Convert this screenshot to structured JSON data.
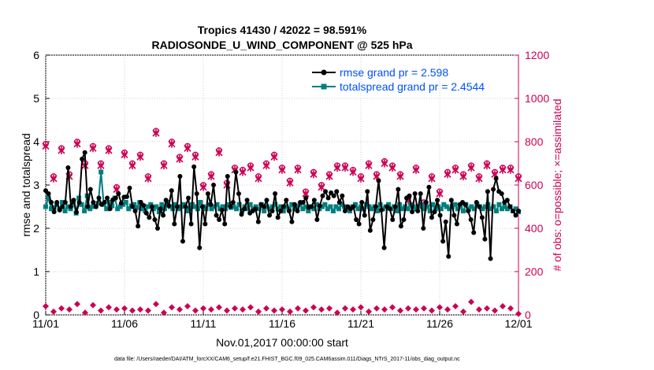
{
  "chart_data": {
    "type": "line",
    "title_line1": "Tropics 41430 / 42022 = 98.591%",
    "title_line2": "RADIOSONDE_U_WIND_COMPONENT @ 525 hPa",
    "xlabel": "Nov.01,2017 00:00:00 start",
    "ylabel": "rmse and totalspread",
    "ylabel_right": "# of obs: o=possible; ×=assimilated",
    "footer": "data file: /Users/raeder/DAI/ATM_forcXX/CAM6_setup/f.e21.FHIST_BGC.f09_025.CAM6assim.011/Diags_NTrS_2017-11/obs_diag_output.nc",
    "x_range": [
      0,
      30
    ],
    "x_ticks": [
      0,
      5,
      10,
      15,
      20,
      25,
      30
    ],
    "x_tick_labels": [
      "11/01",
      "11/06",
      "11/11",
      "11/16",
      "11/21",
      "11/26",
      "12/01"
    ],
    "y_range": [
      0,
      6
    ],
    "y_ticks": [
      "0",
      "1",
      "2",
      "3",
      "4",
      "5",
      "6"
    ],
    "y2_range": [
      0,
      1200
    ],
    "y2_ticks": [
      "0",
      "200",
      "400",
      "600",
      "800",
      "1000",
      "1200"
    ],
    "legend": [
      "rmse grand pr = 2.598",
      "totalspread grand pr = 2.4544"
    ],
    "series": [
      {
        "name": "rmse",
        "color": "#000000",
        "values": [
          2.87,
          2.8,
          2.6,
          2.38,
          2.6,
          2.42,
          2.5,
          2.6,
          3.4,
          2.5,
          2.65,
          2.37,
          2.6,
          3.6,
          3.75,
          2.5,
          2.9,
          2.6,
          2.5,
          2.7,
          2.55,
          2.6,
          2.7,
          2.45,
          2.66,
          2.7,
          2.8,
          2.58,
          2.72,
          2.73,
          2.93,
          2.5,
          2.4,
          2.05,
          2.6,
          2.53,
          2.35,
          2.25,
          2.5,
          2.2,
          2.0,
          2.45,
          2.3,
          2.65,
          2.52,
          2.87,
          2.1,
          2.5,
          3.2,
          1.7,
          2.5,
          2.7,
          2.1,
          3.42,
          2.8,
          1.55,
          2.5,
          2.1,
          2.8,
          2.55,
          3.0,
          2.3,
          2.2,
          2.42,
          2.1,
          3.2,
          2.5,
          2.6,
          3.3,
          2.8,
          2.32,
          2.45,
          2.65,
          2.35,
          2.4,
          2.45,
          2.15,
          2.55,
          2.5,
          2.65,
          2.3,
          2.4,
          2.8,
          2.25,
          2.4,
          2.5,
          2.65,
          2.4,
          2.15,
          2.55,
          2.4,
          2.6,
          2.6,
          2.7,
          2.48,
          2.5,
          2.65,
          2.2,
          2.52,
          2.75,
          2.85,
          2.7,
          2.82,
          2.75,
          2.85,
          2.6,
          2.75,
          2.4,
          2.5,
          2.45,
          2.5,
          2.2,
          2.1,
          2.6,
          2.3,
          2.85,
          1.95,
          2.2,
          2.5,
          3.1,
          2.42,
          1.55,
          2.5,
          2.45,
          2.2,
          2.5,
          2.9,
          2.05,
          2.2,
          2.7,
          2.75,
          2.38,
          2.8,
          2.4,
          2.8,
          2.0,
          2.6,
          2.95,
          2.25,
          2.38,
          2.65,
          2.3,
          1.7,
          2.15,
          1.35,
          2.65,
          2.3,
          2.1,
          2.55,
          2.6,
          2.55,
          2.4,
          2.2,
          1.9,
          2.6,
          2.5,
          2.25,
          1.75,
          2.85,
          1.3,
          2.9,
          3.15,
          2.85,
          2.8,
          2.6,
          2.65,
          2.5,
          2.4,
          2.3,
          2.4
        ]
      },
      {
        "name": "totalspread",
        "color": "#007f7f",
        "values": [
          2.5,
          2.7,
          2.45,
          2.48,
          2.55,
          2.45,
          2.6,
          2.4,
          2.5,
          2.45,
          2.6,
          2.35,
          2.7,
          2.55,
          2.4,
          2.75,
          2.45,
          2.5,
          2.5,
          2.58,
          3.3,
          2.55,
          2.45,
          2.6,
          2.52,
          2.7,
          2.45,
          2.5,
          2.55,
          2.6,
          2.45,
          2.52,
          2.55,
          2.48,
          2.6,
          2.45,
          2.4,
          2.5,
          2.55,
          2.45,
          2.5,
          2.38,
          2.55,
          2.45,
          2.6,
          2.5,
          2.45,
          2.55,
          2.45,
          2.5,
          2.55,
          2.4,
          2.45,
          2.55,
          2.5,
          2.45,
          2.6,
          2.5,
          2.45,
          2.55,
          2.45,
          2.5,
          2.55,
          2.45,
          2.5,
          2.45,
          2.55,
          2.48,
          2.5,
          2.45,
          2.55,
          2.4,
          2.5,
          2.45,
          2.55,
          2.45,
          2.5,
          2.45,
          2.55,
          2.4,
          2.5,
          2.45,
          2.5,
          2.55,
          2.45,
          2.5,
          2.4,
          2.5,
          2.45,
          2.55,
          2.45,
          2.5,
          2.55,
          2.45,
          2.5,
          2.4,
          2.5,
          2.45,
          2.55,
          2.45,
          2.5,
          2.55,
          2.45,
          2.5,
          2.4,
          2.5,
          2.45,
          2.55,
          2.5,
          2.45,
          2.4,
          2.5,
          2.55,
          2.45,
          2.5,
          2.45,
          2.55,
          2.5,
          2.45,
          2.5,
          2.4,
          2.55,
          2.45,
          2.5,
          2.55,
          2.45,
          2.5,
          2.4,
          2.55,
          2.45,
          2.5,
          2.45,
          2.55,
          2.5,
          2.45,
          2.5,
          2.55,
          2.45,
          2.5,
          2.4,
          2.55,
          2.45,
          2.5,
          2.45,
          2.55,
          2.5,
          2.45,
          2.5,
          2.55,
          2.45,
          2.5,
          2.4,
          2.55,
          2.45,
          2.5,
          2.45,
          2.55,
          2.5,
          2.45,
          2.5,
          2.55,
          2.45,
          2.5,
          2.4,
          2.55,
          2.45,
          2.5,
          2.45,
          2.5,
          2.4,
          2.45,
          2.38
        ]
      },
      {
        "name": "obs possible (right axis)",
        "color": "#cc0055",
        "marker": "o",
        "x": [
          0.0,
          0.5,
          1.0,
          1.5,
          2.0,
          2.5,
          3.0,
          3.5,
          4.0,
          4.5,
          5.0,
          5.5,
          6.0,
          6.5,
          7.0,
          7.5,
          8.0,
          8.5,
          9.0,
          9.5,
          10.0,
          10.5,
          11.0,
          11.5,
          12.0,
          12.5,
          13.0,
          13.5,
          14.0,
          14.5,
          15.0,
          15.5,
          16.0,
          16.5,
          17.0,
          17.5,
          18.0,
          18.5,
          19.0,
          19.5,
          20.0,
          20.5,
          21.0,
          21.5,
          22.0,
          22.5,
          23.0,
          23.5,
          24.0,
          24.5,
          25.0,
          25.5,
          26.0,
          26.5,
          27.0,
          27.5,
          28.0,
          28.5,
          29.0,
          29.5,
          30.0
        ],
        "values": [
          790,
          640,
          770,
          650,
          800,
          700,
          780,
          700,
          770,
          590,
          750,
          700,
          740,
          640,
          850,
          700,
          800,
          730,
          780,
          740,
          600,
          650,
          760,
          610,
          680,
          670,
          690,
          640,
          700,
          740,
          680,
          620,
          680,
          570,
          660,
          600,
          650,
          690,
          690,
          670,
          640,
          700,
          650,
          710,
          690,
          650,
          540,
          680,
          520,
          640,
          570,
          660,
          680,
          650,
          690,
          640,
          700,
          660,
          680,
          680,
          640
        ]
      },
      {
        "name": "obs assimilated (right axis)",
        "color": "#cc0055",
        "marker": "x",
        "x": [
          0.0,
          0.5,
          1.0,
          1.5,
          2.0,
          2.5,
          3.0,
          3.5,
          4.0,
          4.5,
          5.0,
          5.5,
          6.0,
          6.5,
          7.0,
          7.5,
          8.0,
          8.5,
          9.0,
          9.5,
          10.0,
          10.5,
          11.0,
          11.5,
          12.0,
          12.5,
          13.0,
          13.5,
          14.0,
          14.5,
          15.0,
          15.5,
          16.0,
          16.5,
          17.0,
          17.5,
          18.0,
          18.5,
          19.0,
          19.5,
          20.0,
          20.5,
          21.0,
          21.5,
          22.0,
          22.5,
          23.0,
          23.5,
          24.0,
          24.5,
          25.0,
          25.5,
          26.0,
          26.5,
          27.0,
          27.5,
          28.0,
          28.5,
          29.0,
          29.5,
          30.0
        ],
        "values": [
          780,
          630,
          760,
          640,
          790,
          690,
          770,
          690,
          760,
          580,
          740,
          690,
          730,
          630,
          840,
          690,
          790,
          720,
          770,
          730,
          590,
          640,
          750,
          600,
          670,
          660,
          680,
          630,
          690,
          730,
          670,
          610,
          670,
          560,
          650,
          590,
          640,
          680,
          680,
          660,
          630,
          690,
          640,
          700,
          680,
          640,
          530,
          670,
          510,
          630,
          560,
          650,
          670,
          640,
          680,
          630,
          690,
          650,
          670,
          670,
          630
        ]
      }
    ],
    "bottom_counts": {
      "name": "obs counts near zero (right axis)",
      "x": [
        0.0,
        0.5,
        1.0,
        1.5,
        2.0,
        2.5,
        3.0,
        3.5,
        4.0,
        4.5,
        5.0,
        5.5,
        6.0,
        6.5,
        7.0,
        7.5,
        8.0,
        8.5,
        9.0,
        9.5,
        10.0,
        10.5,
        11.0,
        11.5,
        12.0,
        12.5,
        13.0,
        13.5,
        14.0,
        14.5,
        15.0,
        15.5,
        16.0,
        16.5,
        17.0,
        17.5,
        18.0,
        18.5,
        19.0,
        19.5,
        20.0,
        20.5,
        21.0,
        21.5,
        22.0,
        22.5,
        23.0,
        23.5,
        24.0,
        24.5,
        25.0,
        25.5,
        26.0,
        26.5,
        27.0,
        27.5,
        28.0,
        28.5,
        29.0,
        29.5,
        30.0
      ],
      "values": [
        40,
        15,
        30,
        25,
        50,
        10,
        45,
        20,
        35,
        25,
        30,
        20,
        25,
        20,
        50,
        10,
        35,
        25,
        40,
        20,
        30,
        25,
        35,
        20,
        30,
        25,
        35,
        15,
        30,
        20,
        25,
        15,
        30,
        20,
        35,
        25,
        30,
        10,
        30,
        25,
        35,
        15,
        30,
        25,
        35,
        20,
        30,
        25,
        30,
        20,
        35,
        25,
        40,
        15,
        60,
        25,
        30,
        20,
        40,
        30,
        5
      ]
    }
  }
}
